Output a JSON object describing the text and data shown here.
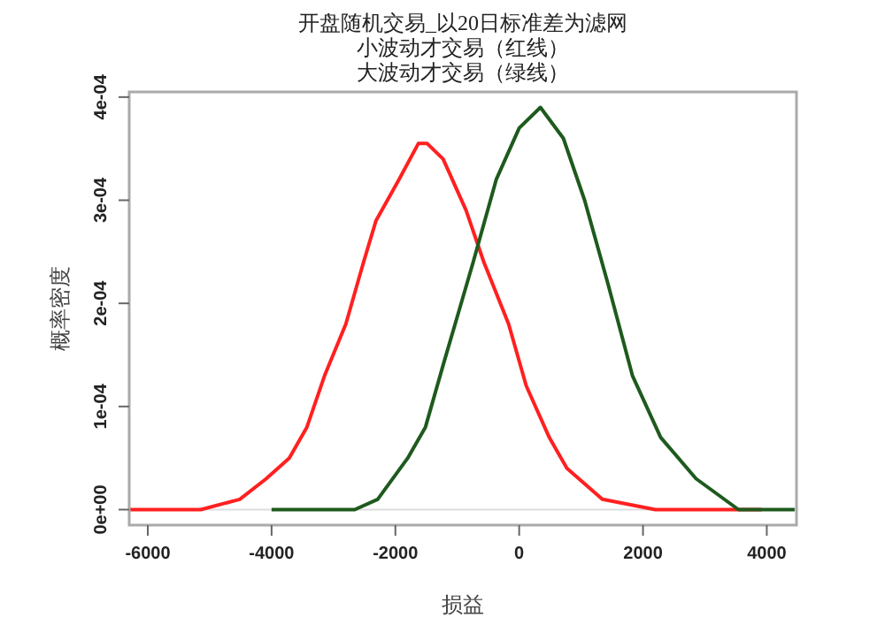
{
  "chart_data": {
    "type": "line",
    "title": "开盘随机交易_以20日标准差为滤网",
    "subtitle": "小波动才交易（红线）",
    "annotations": [
      "大波动才交易（绿线）"
    ],
    "xlabel": "损益",
    "ylabel": "概率密度",
    "xlim": [
      -6300,
      4480
    ],
    "xticks": [
      -6000,
      -4000,
      -2000,
      0,
      2000,
      4000
    ],
    "ylim": [
      -1.5e-05,
      0.000405
    ],
    "yticks": [
      {
        "value": 0,
        "label": "0e+00"
      },
      {
        "value": 0.0001,
        "label": "1e-04"
      },
      {
        "value": 0.0002,
        "label": "2e-04"
      },
      {
        "value": 0.0003,
        "label": "3e-04"
      },
      {
        "value": 0.0004,
        "label": "4e-04"
      }
    ],
    "ref_lines": [
      {
        "axis": "y",
        "value": 0,
        "color": "#dddddd"
      }
    ],
    "line_style": "solid",
    "marker": "none",
    "series": [
      {
        "color": "#ff2020",
        "x": [
          -6300,
          -5143,
          -4514,
          -4086,
          -3714,
          -3429,
          -3143,
          -2800,
          -2514,
          -2314,
          -1943,
          -1629,
          -1486,
          -1229,
          -857,
          -571,
          -171,
          114,
          486,
          771,
          1343,
          2200,
          3143,
          3914
        ],
        "values": [
          0,
          0,
          1e-05,
          3e-05,
          5e-05,
          8e-05,
          0.00013,
          0.00018,
          0.00024,
          0.00028,
          0.00032,
          0.000355,
          0.000355,
          0.00034,
          0.00029,
          0.00024,
          0.00018,
          0.00012,
          7e-05,
          4e-05,
          1e-05,
          0,
          0,
          0
        ]
      },
      {
        "color": "#1e5a1e",
        "x": [
          -4000,
          -2657,
          -2286,
          -1800,
          -1514,
          -1229,
          -743,
          -371,
          0,
          343,
          714,
          1057,
          1429,
          1829,
          2286,
          2857,
          3543,
          4450
        ],
        "values": [
          0,
          0,
          1e-05,
          5e-05,
          8e-05,
          0.00014,
          0.00024,
          0.00032,
          0.00037,
          0.00039,
          0.00036,
          0.0003,
          0.00022,
          0.00013,
          7e-05,
          3e-05,
          0,
          0
        ]
      }
    ]
  }
}
